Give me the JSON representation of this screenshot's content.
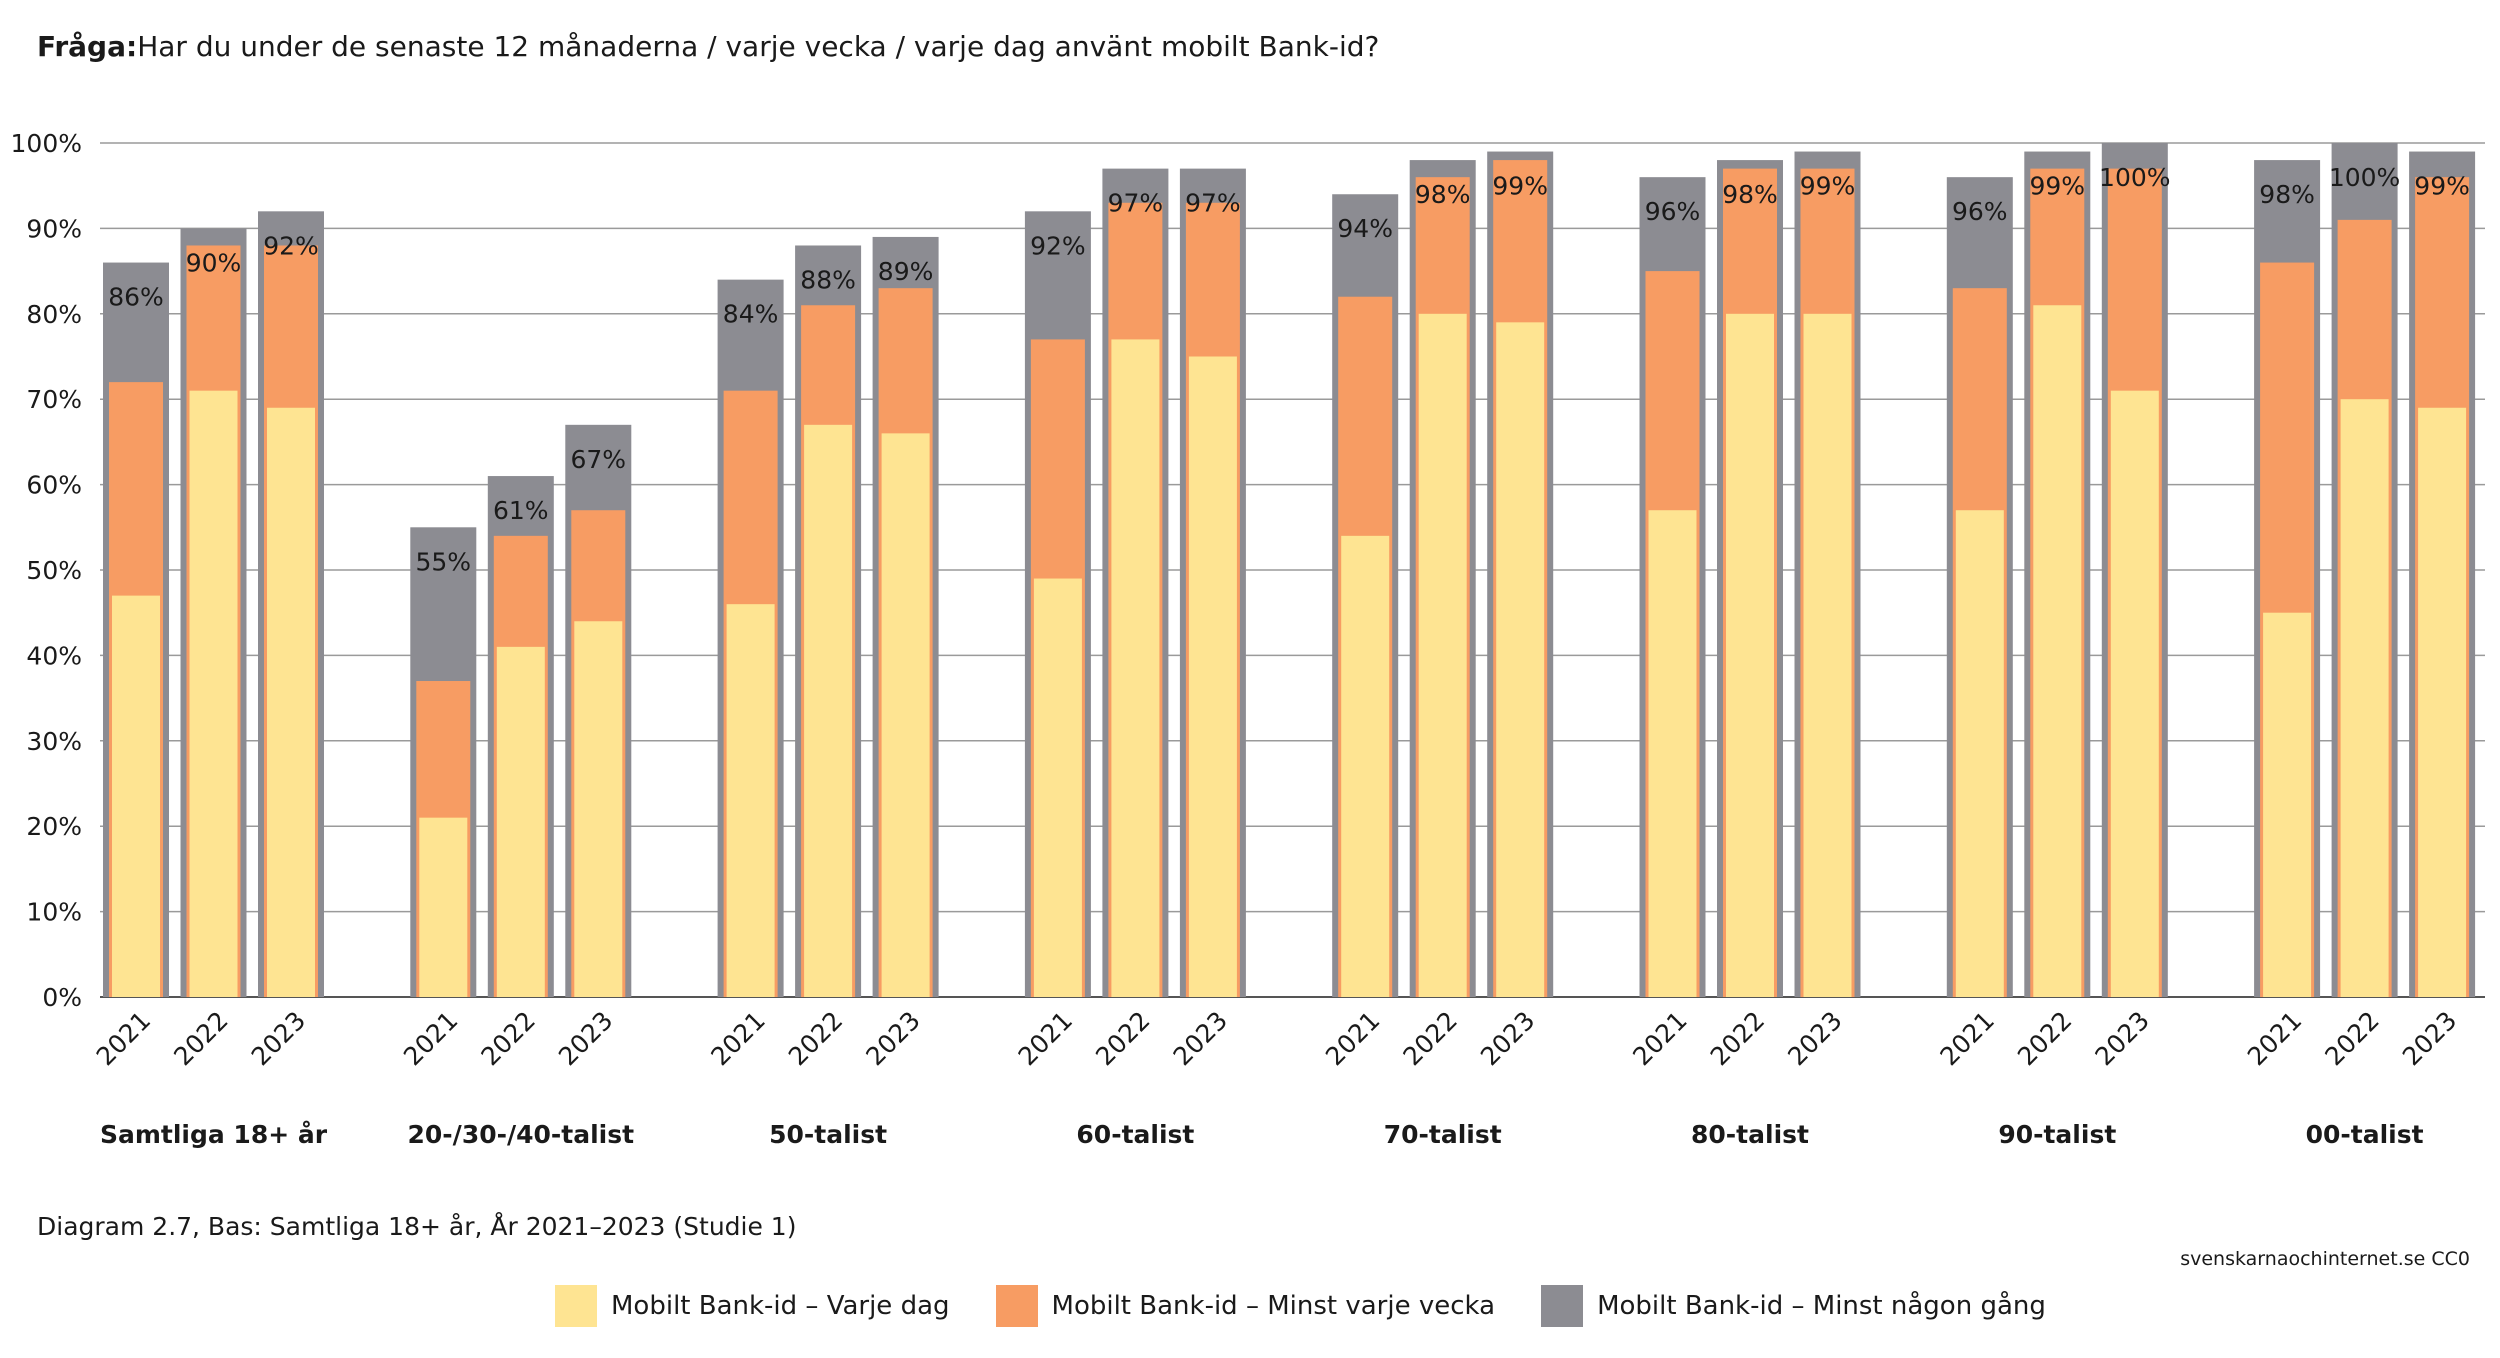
{
  "title": {
    "prefix": "Fråga:",
    "text": "Har du under de senaste 12 månaderna / varje vecka / varje dag använt mobilt Bank-id?"
  },
  "caption": "Diagram 2.7, Bas: Samtliga 18+ år, År 2021–2023 (Studie 1)",
  "credit": "svenskarnaochinternet.se CC0",
  "colors": {
    "daily": "#FEE492",
    "weekly": "#F79C63",
    "any": "#8C8C92",
    "grid": "#9a9a9a",
    "axis": "#555555"
  },
  "chart_data": {
    "type": "bar",
    "stacking": "overlapping",
    "ylim": [
      0,
      100
    ],
    "yticks": [
      0,
      10,
      20,
      30,
      40,
      50,
      60,
      70,
      80,
      90,
      100
    ],
    "ytick_labels": [
      "0%",
      "10%",
      "20%",
      "30%",
      "40%",
      "50%",
      "60%",
      "70%",
      "80%",
      "90%",
      "100%"
    ],
    "grid": true,
    "legend_position": "bottom",
    "years": [
      "2021",
      "2022",
      "2023"
    ],
    "series": [
      {
        "name": "Mobilt Bank-id – Varje dag",
        "key": "daily"
      },
      {
        "name": "Mobilt Bank-id – Minst varje vecka",
        "key": "weekly"
      },
      {
        "name": "Mobilt Bank-id – Minst någon gång",
        "key": "any"
      }
    ],
    "groups": [
      {
        "name": "Samtliga 18+ år",
        "daily": [
          47,
          71,
          69
        ],
        "weekly": [
          72,
          88,
          88
        ],
        "any": [
          86,
          90,
          92
        ],
        "labels": [
          "86%",
          "90%",
          "92%"
        ]
      },
      {
        "name": "20-/30-/40-talist",
        "daily": [
          21,
          41,
          44
        ],
        "weekly": [
          37,
          54,
          57
        ],
        "any": [
          55,
          61,
          67
        ],
        "labels": [
          "55%",
          "61%",
          "67%"
        ]
      },
      {
        "name": "50-talist",
        "daily": [
          46,
          67,
          66
        ],
        "weekly": [
          71,
          81,
          83
        ],
        "any": [
          84,
          88,
          89
        ],
        "labels": [
          "84%",
          "88%",
          "89%"
        ]
      },
      {
        "name": "60-talist",
        "daily": [
          49,
          77,
          75
        ],
        "weekly": [
          77,
          93,
          93
        ],
        "any": [
          92,
          97,
          97
        ],
        "labels": [
          "92%",
          "97%",
          "97%"
        ]
      },
      {
        "name": "70-talist",
        "daily": [
          54,
          80,
          79
        ],
        "weekly": [
          82,
          96,
          98
        ],
        "any": [
          94,
          98,
          99
        ],
        "labels": [
          "94%",
          "98%",
          "99%"
        ]
      },
      {
        "name": "80-talist",
        "daily": [
          57,
          80,
          80
        ],
        "weekly": [
          85,
          97,
          97
        ],
        "any": [
          96,
          98,
          99
        ],
        "labels": [
          "96%",
          "98%",
          "99%"
        ]
      },
      {
        "name": "90-talist",
        "daily": [
          57,
          81,
          71
        ],
        "weekly": [
          83,
          97,
          97
        ],
        "any": [
          96,
          99,
          100
        ],
        "labels": [
          "96%",
          "99%",
          "100%"
        ]
      },
      {
        "name": "00-talist",
        "daily": [
          45,
          70,
          69
        ],
        "weekly": [
          86,
          91,
          96
        ],
        "any": [
          98,
          100,
          99
        ],
        "labels": [
          "98%",
          "100%",
          "99%"
        ]
      }
    ]
  }
}
